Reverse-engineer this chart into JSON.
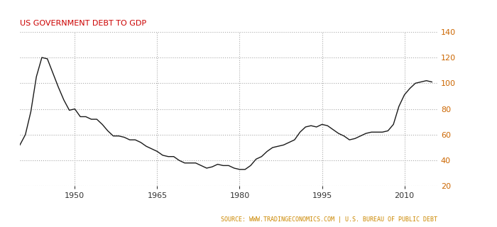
{
  "title": "US GOVERNMENT DEBT TO GDP",
  "source_text": "SOURCE: WWW.TRADINGECONOMICS.COM | U.S. BUREAU OF PUBLIC DEBT",
  "title_color": "#cc0000",
  "source_color": "#cc8800",
  "line_color": "#1a1a1a",
  "background_color": "#ffffff",
  "grid_color": "#aaaaaa",
  "right_axis_color": "#cc6600",
  "xlim": [
    1940,
    2016
  ],
  "ylim": [
    20,
    140
  ],
  "yticks": [
    20,
    40,
    60,
    80,
    100,
    120,
    140
  ],
  "xticks": [
    1950,
    1965,
    1980,
    1995,
    2010
  ],
  "years": [
    1940,
    1941,
    1942,
    1943,
    1944,
    1945,
    1946,
    1947,
    1948,
    1949,
    1950,
    1951,
    1952,
    1953,
    1954,
    1955,
    1956,
    1957,
    1958,
    1959,
    1960,
    1961,
    1962,
    1963,
    1964,
    1965,
    1966,
    1967,
    1968,
    1969,
    1970,
    1971,
    1972,
    1973,
    1974,
    1975,
    1976,
    1977,
    1978,
    1979,
    1980,
    1981,
    1982,
    1983,
    1984,
    1985,
    1986,
    1987,
    1988,
    1989,
    1990,
    1991,
    1992,
    1993,
    1994,
    1995,
    1996,
    1997,
    1998,
    1999,
    2000,
    2001,
    2002,
    2003,
    2004,
    2005,
    2006,
    2007,
    2008,
    2009,
    2010,
    2011,
    2012,
    2013,
    2014,
    2015
  ],
  "values": [
    52,
    60,
    78,
    105,
    120,
    119,
    108,
    97,
    87,
    79,
    80,
    74,
    74,
    72,
    72,
    68,
    63,
    59,
    59,
    58,
    56,
    56,
    54,
    51,
    49,
    47,
    44,
    43,
    43,
    40,
    38,
    38,
    38,
    36,
    34,
    35,
    37,
    36,
    36,
    34,
    33,
    33,
    36,
    41,
    43,
    47,
    50,
    51,
    52,
    54,
    56,
    62,
    66,
    67,
    66,
    68,
    67,
    64,
    61,
    59,
    56,
    57,
    59,
    61,
    62,
    62,
    62,
    63,
    68,
    82,
    91,
    96,
    100,
    101,
    102,
    101
  ]
}
